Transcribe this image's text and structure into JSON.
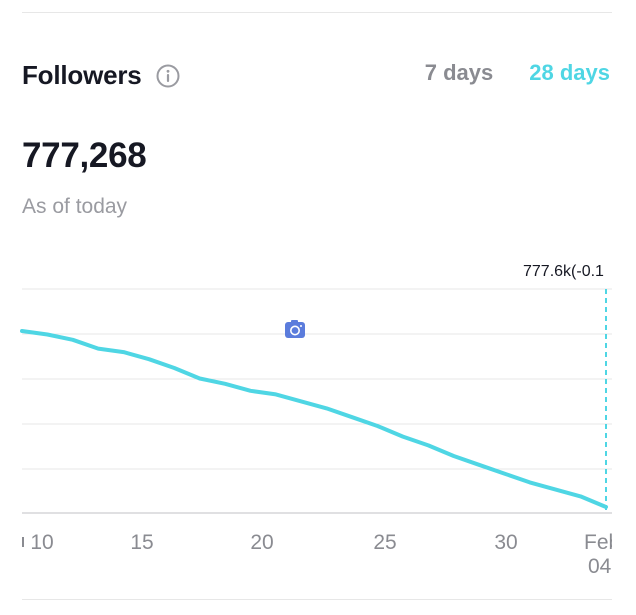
{
  "header": {
    "title": "Followers",
    "tabs": [
      {
        "label": "7 days",
        "active": false
      },
      {
        "label": "28 days",
        "active": true
      }
    ]
  },
  "summary": {
    "count": "777,268",
    "subtitle": "As of today"
  },
  "icons": {
    "info": "info-circle-icon",
    "camera": "camera-icon"
  },
  "colors": {
    "accent": "#4fd6e4",
    "text": "#161823",
    "muted": "#8a8b91",
    "grid": "#e7e7e7"
  },
  "chart_data": {
    "type": "line",
    "x_tick_labels": [
      "10",
      "15",
      "20",
      "25",
      "30",
      "Feb 04"
    ],
    "tooltip": "777.6k(-0.1",
    "series": [
      {
        "values": [
          1.0,
          0.98,
          0.95,
          0.9,
          0.88,
          0.84,
          0.79,
          0.73,
          0.7,
          0.66,
          0.64,
          0.6,
          0.56,
          0.51,
          0.46,
          0.4,
          0.35,
          0.29,
          0.24,
          0.19,
          0.14,
          0.1,
          0.06,
          0.0
        ]
      }
    ],
    "grid": true,
    "highlight_last": true
  }
}
